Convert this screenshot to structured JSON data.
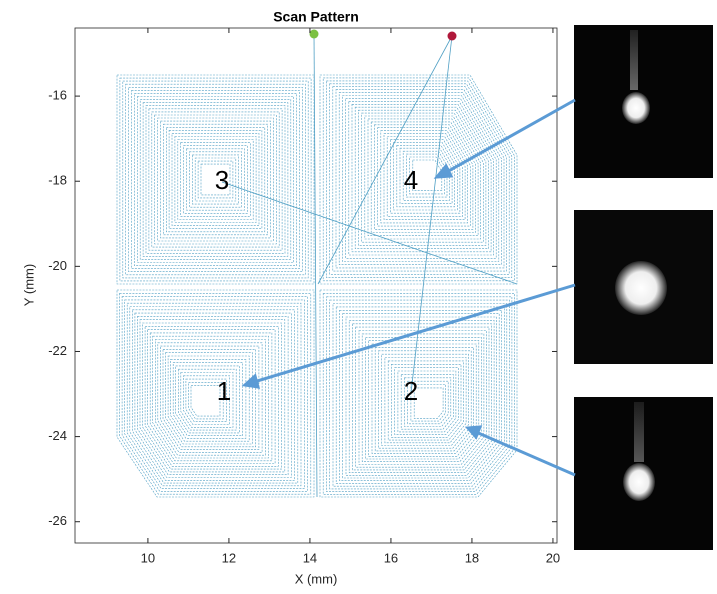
{
  "chart_data": {
    "type": "scan",
    "title": "Scan Pattern",
    "x_label": "X (mm)",
    "y_label": "Y (mm)",
    "xlim": [
      8.2,
      20.1
    ],
    "ylim": [
      -26.5,
      -14.4
    ],
    "xticks": [
      10,
      12,
      14,
      16,
      18,
      20
    ],
    "yticks": [
      -26,
      -24,
      -22,
      -20,
      -18,
      -16
    ],
    "annotations": [
      "3",
      "4",
      "1",
      "2"
    ]
  }
}
